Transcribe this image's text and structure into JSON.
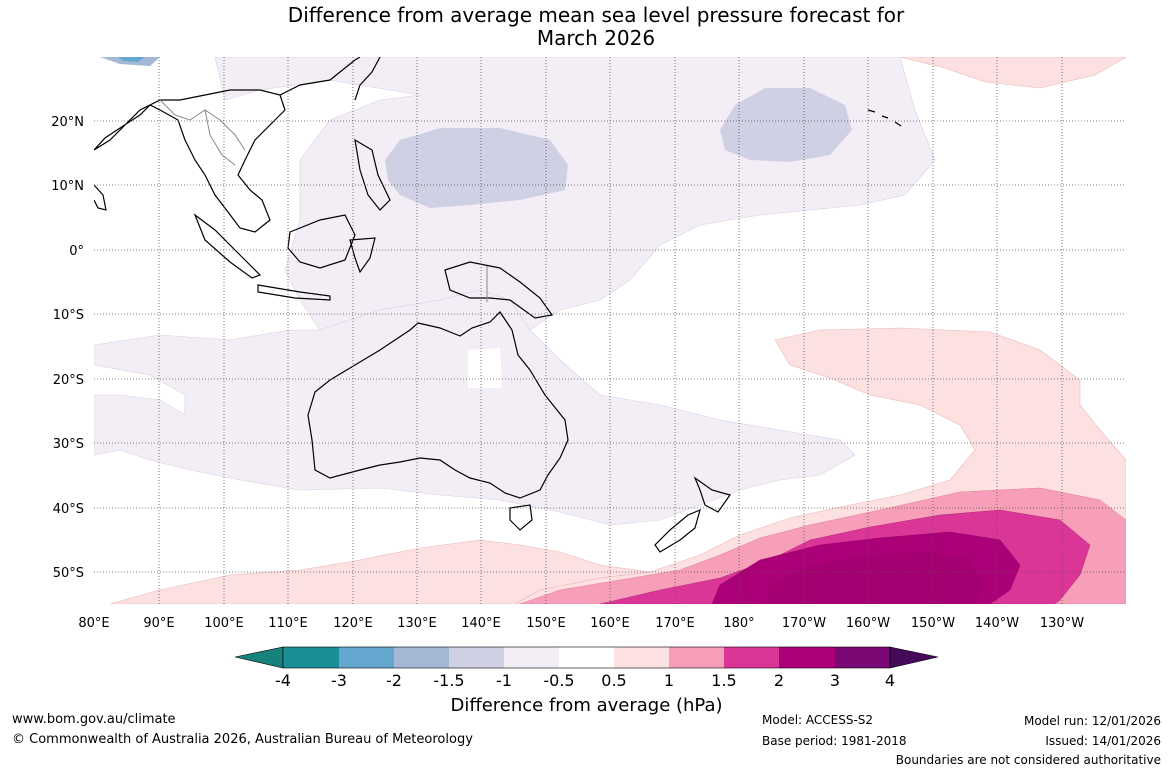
{
  "title": {
    "line1": "Difference from average mean sea level pressure forecast for",
    "line2": "March 2026"
  },
  "axes": {
    "lat_labels": [
      "20°N",
      "10°N",
      "0°",
      "10°S",
      "20°S",
      "30°S",
      "40°S",
      "50°S"
    ],
    "lon_labels": [
      "80°E",
      "90°E",
      "100°E",
      "110°E",
      "120°E",
      "130°E",
      "140°E",
      "150°E",
      "160°E",
      "170°E",
      "180°",
      "170°W",
      "160°W",
      "150°W",
      "140°W",
      "130°W"
    ]
  },
  "colorbar": {
    "labels": [
      "-4",
      "-3",
      "-2",
      "-1.5",
      "-1",
      "-0.5",
      "0.5",
      "1",
      "1.5",
      "2",
      "3",
      "4"
    ],
    "colors": [
      "#17827c",
      "#1b8f97",
      "#63a7cf",
      "#a4b8d6",
      "#cfd0e4",
      "#f3eef6",
      "#ffffff",
      "#fde0e0",
      "#f79fb9",
      "#dc3598",
      "#ac0078",
      "#7a0976",
      "#460a5b"
    ],
    "title": "Difference from average (hPa)"
  },
  "footer": {
    "website": "www.bom.gov.au/climate",
    "copyright": "© Commonwealth of Australia 2026, Australian Bureau of Meteorology",
    "model": "Model: ACCESS-S2",
    "base_period": "Base period: 1981-2018",
    "model_run": "Model run: 12/01/2026",
    "issued": "Issued: 14/01/2026",
    "disclaimer": "Boundaries are not considered authoritative"
  }
}
